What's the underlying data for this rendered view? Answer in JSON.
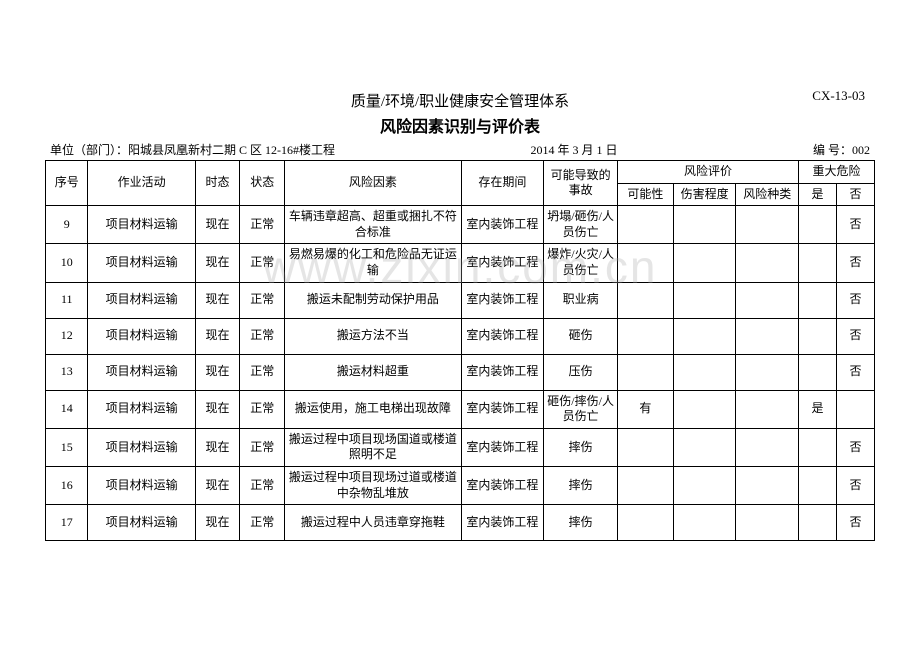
{
  "doc_code": "CX-13-03",
  "title_line1": "质量/环境/职业健康安全管理体系",
  "title_line2": "风险因素识别与评价表",
  "meta": {
    "unit_label": "单位（部门）：",
    "unit_value": "阳城县凤凰新村二期 C 区 12-16#楼工程",
    "date": "2014 年 3 月 1 日",
    "doc_no_label": "编 号：",
    "doc_no_value": "002"
  },
  "watermark": "www.zixin.com.cn",
  "columns": {
    "seq": "序号",
    "activity": "作业活动",
    "timing": "时态",
    "state": "状态",
    "factor": "风险因素",
    "period": "存在期间",
    "accident_group": "可能导致的事故",
    "eval_group": "风险评价",
    "possibility": "可能性",
    "injury": "伤害程度",
    "risktype": "风险种类",
    "major_group": "重大危险",
    "major_yes": "是",
    "major_no": "否"
  },
  "rows": [
    {
      "seq": "9",
      "activity": "项目材料运输",
      "timing": "现在",
      "state": "正常",
      "factor": "车辆违章超高、超重或捆扎不符合标准",
      "period": "室内装饰工程",
      "accident": "坍塌/砸伤/人员伤亡",
      "possibility": "",
      "injury": "",
      "risktype": "",
      "major_yes": "",
      "major_no": "否"
    },
    {
      "seq": "10",
      "activity": "项目材料运输",
      "timing": "现在",
      "state": "正常",
      "factor": "易燃易爆的化工和危险品无证运输",
      "period": "室内装饰工程",
      "accident": "爆炸/火灾/人员伤亡",
      "possibility": "",
      "injury": "",
      "risktype": "",
      "major_yes": "",
      "major_no": "否"
    },
    {
      "seq": "11",
      "activity": "项目材料运输",
      "timing": "现在",
      "state": "正常",
      "factor": "搬运未配制劳动保护用品",
      "period": "室内装饰工程",
      "accident": "职业病",
      "possibility": "",
      "injury": "",
      "risktype": "",
      "major_yes": "",
      "major_no": "否"
    },
    {
      "seq": "12",
      "activity": "项目材料运输",
      "timing": "现在",
      "state": "正常",
      "factor": "搬运方法不当",
      "period": "室内装饰工程",
      "accident": "砸伤",
      "possibility": "",
      "injury": "",
      "risktype": "",
      "major_yes": "",
      "major_no": "否"
    },
    {
      "seq": "13",
      "activity": "项目材料运输",
      "timing": "现在",
      "state": "正常",
      "factor": "搬运材料超重",
      "period": "室内装饰工程",
      "accident": "压伤",
      "possibility": "",
      "injury": "",
      "risktype": "",
      "major_yes": "",
      "major_no": "否"
    },
    {
      "seq": "14",
      "activity": "项目材料运输",
      "timing": "现在",
      "state": "正常",
      "factor": "搬运使用，施工电梯出现故障",
      "period": "室内装饰工程",
      "accident": "砸伤/摔伤/人员伤亡",
      "possibility": "有",
      "injury": "",
      "risktype": "",
      "major_yes": "是",
      "major_no": ""
    },
    {
      "seq": "15",
      "activity": "项目材料运输",
      "timing": "现在",
      "state": "正常",
      "factor": "搬运过程中项目现场国道或楼道照明不足",
      "period": "室内装饰工程",
      "accident": "摔伤",
      "possibility": "",
      "injury": "",
      "risktype": "",
      "major_yes": "",
      "major_no": "否"
    },
    {
      "seq": "16",
      "activity": "项目材料运输",
      "timing": "现在",
      "state": "正常",
      "factor": "搬运过程中项目现场过道或楼道中杂物乱堆放",
      "period": "室内装饰工程",
      "accident": "摔伤",
      "possibility": "",
      "injury": "",
      "risktype": "",
      "major_yes": "",
      "major_no": "否"
    },
    {
      "seq": "17",
      "activity": "项目材料运输",
      "timing": "现在",
      "state": "正常",
      "factor": "搬运过程中人员违章穿拖鞋",
      "period": "室内装饰工程",
      "accident": "摔伤",
      "possibility": "",
      "injury": "",
      "risktype": "",
      "major_yes": "",
      "major_no": "否"
    }
  ]
}
